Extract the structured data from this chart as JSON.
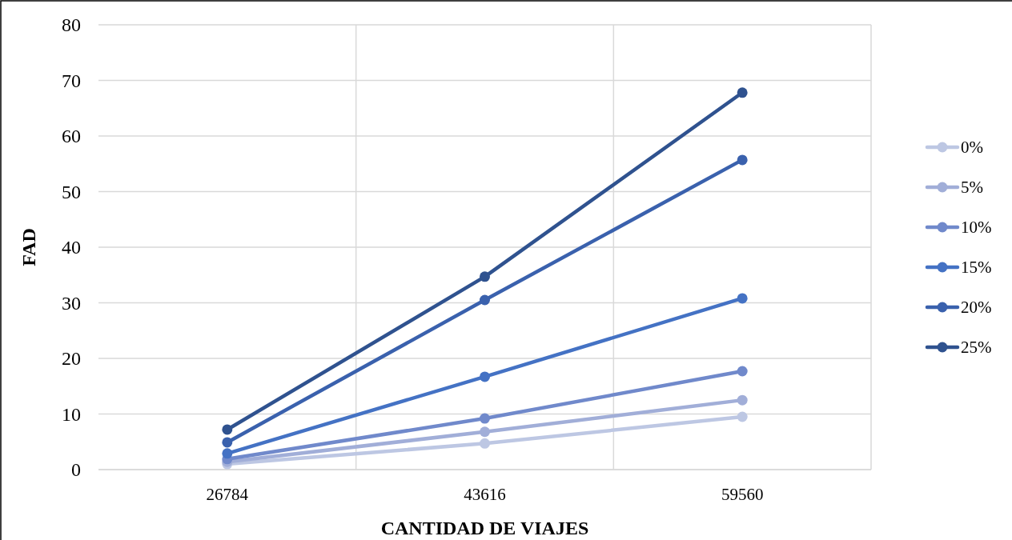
{
  "chart_data": {
    "type": "line",
    "xlabel": "CANTIDAD DE VIAJES",
    "ylabel": "FAD",
    "categories": [
      "26784",
      "43616",
      "59560"
    ],
    "series": [
      {
        "name": "0%",
        "color": "#bdc7e3",
        "values": [
          1.0,
          4.7,
          9.5
        ]
      },
      {
        "name": "5%",
        "color": "#a1aed8",
        "values": [
          1.4,
          6.8,
          12.5
        ]
      },
      {
        "name": "10%",
        "color": "#7089cb",
        "values": [
          1.9,
          9.2,
          17.7
        ]
      },
      {
        "name": "15%",
        "color": "#4472c4",
        "values": [
          2.9,
          16.7,
          30.8
        ]
      },
      {
        "name": "20%",
        "color": "#3a61ad",
        "values": [
          4.9,
          30.5,
          55.7
        ]
      },
      {
        "name": "25%",
        "color": "#2f528f",
        "values": [
          7.2,
          34.7,
          67.8
        ]
      }
    ],
    "ylim": [
      0,
      80
    ],
    "yticks": [
      0,
      10,
      20,
      30,
      40,
      50,
      60,
      70,
      80
    ],
    "grid": true,
    "legend": "right",
    "marker": "circle",
    "line_style": "solid"
  }
}
